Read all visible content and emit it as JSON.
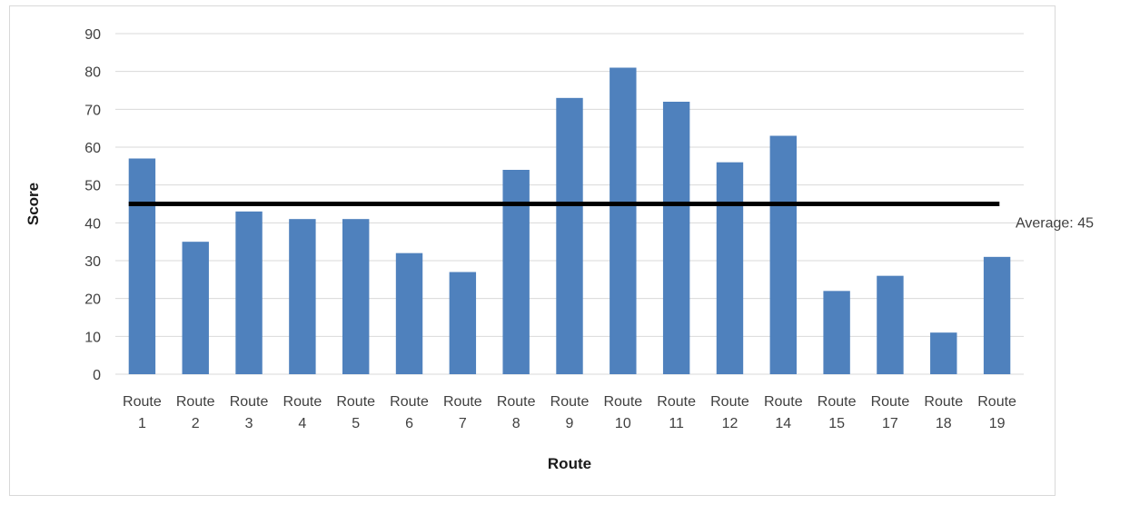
{
  "chart_data": {
    "type": "bar",
    "title": "",
    "xlabel": "Route",
    "ylabel": "Score",
    "ylim": [
      0,
      90
    ],
    "ytick_step": 10,
    "grid": true,
    "categories": [
      [
        "Route",
        "1"
      ],
      [
        "Route",
        "2"
      ],
      [
        "Route",
        "3"
      ],
      [
        "Route",
        "4"
      ],
      [
        "Route",
        "5"
      ],
      [
        "Route",
        "6"
      ],
      [
        "Route",
        "7"
      ],
      [
        "Route",
        "8"
      ],
      [
        "Route",
        "9"
      ],
      [
        "Route",
        "10"
      ],
      [
        "Route",
        "11"
      ],
      [
        "Route",
        "12"
      ],
      [
        "Route",
        "14"
      ],
      [
        "Route",
        "15"
      ],
      [
        "Route",
        "17"
      ],
      [
        "Route",
        "18"
      ],
      [
        "Route",
        "19"
      ]
    ],
    "values": [
      57,
      35,
      43,
      41,
      41,
      32,
      27,
      54,
      73,
      81,
      72,
      56,
      63,
      22,
      26,
      11,
      31
    ],
    "average": {
      "value": 45,
      "label": "Average: 45"
    },
    "colors": {
      "bar": "#4f81bd",
      "grid": "#d9d9d9",
      "average_line": "#000000",
      "text": "#404040"
    }
  }
}
